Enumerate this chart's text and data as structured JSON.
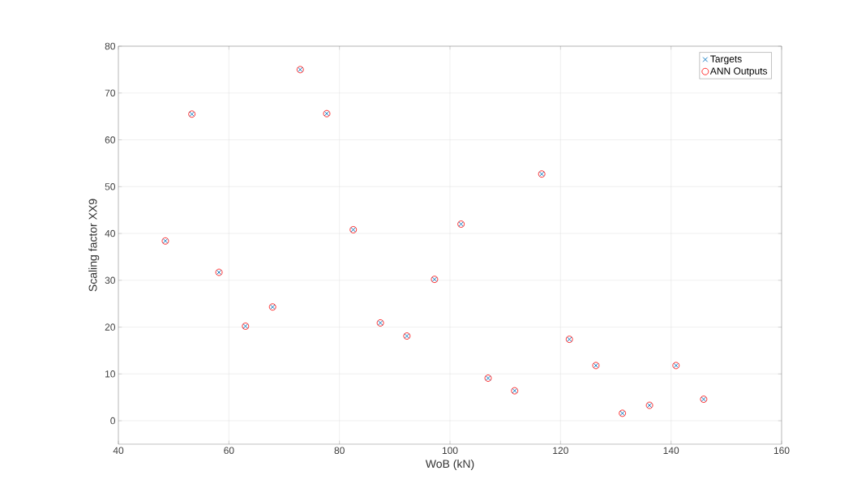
{
  "chart_data": {
    "type": "scatter",
    "xlabel": "WoB (kN)",
    "ylabel": "Scaling factor XX9",
    "x": [
      48.5,
      53.3,
      58.2,
      63.0,
      67.9,
      72.9,
      77.7,
      82.5,
      87.4,
      92.2,
      97.2,
      102.0,
      106.9,
      111.7,
      116.6,
      121.6,
      126.4,
      131.2,
      136.1,
      140.9,
      145.9
    ],
    "series": [
      {
        "name": "Targets",
        "color": "#0072bd",
        "marker": "cross",
        "values": [
          38.4,
          65.5,
          31.7,
          20.2,
          24.3,
          75.0,
          65.6,
          40.8,
          20.9,
          18.1,
          30.2,
          42.0,
          9.1,
          6.4,
          52.7,
          17.4,
          11.8,
          1.6,
          3.3,
          11.8,
          4.6
        ]
      },
      {
        "name": "ANN Outputs",
        "color": "#ff0000",
        "marker": "circle",
        "values": [
          38.4,
          65.5,
          31.7,
          20.2,
          24.3,
          75.0,
          65.6,
          40.8,
          20.9,
          18.1,
          30.2,
          42.0,
          9.1,
          6.4,
          52.7,
          17.4,
          11.8,
          1.6,
          3.3,
          11.8,
          4.6
        ]
      }
    ],
    "xlim": [
      40,
      160
    ],
    "ylim": [
      -5,
      80
    ],
    "xticks": [
      40,
      60,
      80,
      100,
      120,
      140,
      160
    ],
    "yticks": [
      0,
      10,
      20,
      30,
      40,
      50,
      60,
      70,
      80
    ],
    "grid": true,
    "legend": "top right"
  }
}
